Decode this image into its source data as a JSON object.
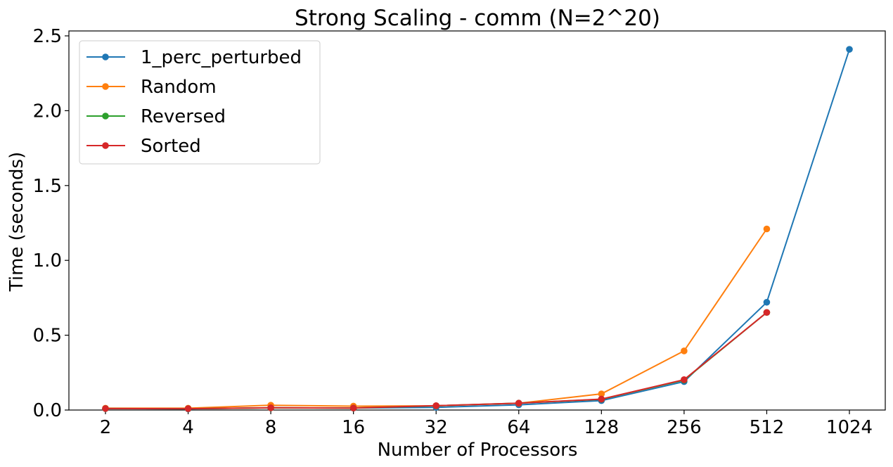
{
  "chart_data": {
    "type": "line",
    "title": "Strong Scaling - comm (N=2^20)",
    "xlabel": "Number of Processors",
    "ylabel": "Time (seconds)",
    "x": [
      "2",
      "4",
      "8",
      "16",
      "32",
      "64",
      "128",
      "256",
      "512",
      "1024"
    ],
    "ylim": [
      0,
      2.5
    ],
    "yticks": [
      "0.0",
      "0.5",
      "1.0",
      "1.5",
      "2.0",
      "2.5"
    ],
    "grid": false,
    "legend": "top-left",
    "series": [
      {
        "name": "1_perc_perturbed",
        "color": "#1f77b4",
        "values": [
          0.01,
          0.008,
          0.015,
          0.013,
          0.018,
          0.035,
          0.063,
          0.19,
          0.72,
          2.41
        ]
      },
      {
        "name": "Random",
        "color": "#ff7f0e",
        "values": [
          0.012,
          0.012,
          0.032,
          0.026,
          0.028,
          0.045,
          0.108,
          0.395,
          1.21,
          null
        ]
      },
      {
        "name": "Reversed",
        "color": "#2ca02c",
        "values": [
          0.01,
          0.009,
          0.014,
          0.013,
          0.028,
          0.046,
          0.072,
          0.2,
          0.652,
          null
        ]
      },
      {
        "name": "Sorted",
        "color": "#d62728",
        "values": [
          0.01,
          0.009,
          0.015,
          0.013,
          0.029,
          0.046,
          0.073,
          0.203,
          0.652,
          null
        ]
      }
    ]
  }
}
